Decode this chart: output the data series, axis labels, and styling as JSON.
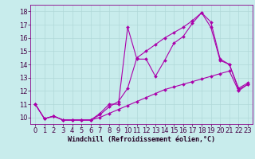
{
  "xlabel": "Windchill (Refroidissement éolien,°C)",
  "background_color": "#c8ecec",
  "grid_color": "#b0d8d8",
  "line_color": "#aa00aa",
  "xlim": [
    -0.5,
    23.5
  ],
  "ylim": [
    9.5,
    18.5
  ],
  "yticks": [
    10,
    11,
    12,
    13,
    14,
    15,
    16,
    17,
    18
  ],
  "xticks": [
    0,
    1,
    2,
    3,
    4,
    5,
    6,
    7,
    8,
    9,
    10,
    11,
    12,
    13,
    14,
    15,
    16,
    17,
    18,
    19,
    20,
    21,
    22,
    23
  ],
  "line1_x": [
    0,
    1,
    2,
    3,
    4,
    5,
    6,
    7,
    8,
    9,
    10,
    11,
    12,
    13,
    14,
    15,
    16,
    17,
    18,
    19,
    20,
    21,
    22,
    23
  ],
  "line1_y": [
    11.0,
    9.9,
    10.1,
    9.8,
    9.8,
    9.8,
    9.8,
    10.3,
    11.0,
    11.0,
    16.8,
    14.4,
    14.4,
    13.1,
    14.3,
    15.6,
    16.1,
    17.1,
    17.9,
    16.8,
    14.3,
    14.0,
    12.1,
    12.5
  ],
  "line2_x": [
    0,
    1,
    2,
    3,
    4,
    5,
    6,
    7,
    8,
    9,
    10,
    11,
    12,
    13,
    14,
    15,
    16,
    17,
    18,
    19,
    20,
    21,
    22,
    23
  ],
  "line2_y": [
    11.0,
    9.9,
    10.1,
    9.8,
    9.8,
    9.8,
    9.8,
    10.2,
    10.8,
    11.2,
    12.2,
    14.5,
    15.0,
    15.5,
    16.0,
    16.4,
    16.8,
    17.3,
    17.9,
    17.2,
    14.4,
    14.0,
    12.2,
    12.6
  ],
  "line3_x": [
    0,
    1,
    2,
    3,
    4,
    5,
    6,
    7,
    8,
    9,
    10,
    11,
    12,
    13,
    14,
    15,
    16,
    17,
    18,
    19,
    20,
    21,
    22,
    23
  ],
  "line3_y": [
    11.0,
    9.9,
    10.1,
    9.8,
    9.8,
    9.8,
    9.8,
    10.0,
    10.3,
    10.6,
    10.9,
    11.2,
    11.5,
    11.8,
    12.1,
    12.3,
    12.5,
    12.7,
    12.9,
    13.1,
    13.3,
    13.5,
    12.0,
    12.5
  ],
  "tick_fontsize": 6,
  "xlabel_fontsize": 6,
  "marker_size": 2.0,
  "linewidth": 0.8
}
